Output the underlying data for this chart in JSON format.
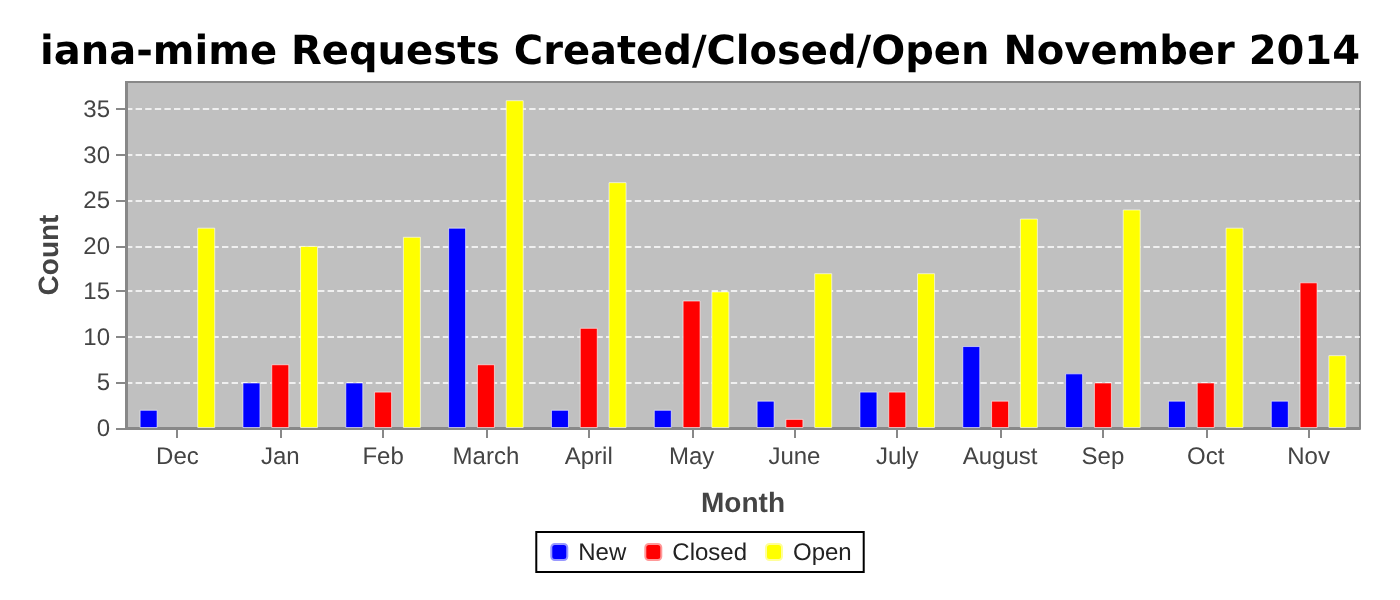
{
  "chart_data": {
    "type": "bar",
    "title": "iana-mime Requests Created/Closed/Open November 2014",
    "xlabel": "Month",
    "ylabel": "Count",
    "categories": [
      "Dec",
      "Jan",
      "Feb",
      "March",
      "April",
      "May",
      "June",
      "July",
      "August",
      "Sep",
      "Oct",
      "Nov"
    ],
    "series": [
      {
        "name": "New",
        "color": "#0000ff",
        "values": [
          2,
          5,
          5,
          22,
          2,
          2,
          3,
          4,
          9,
          6,
          3,
          3
        ]
      },
      {
        "name": "Closed",
        "color": "#ff0000",
        "values": [
          null,
          7,
          4,
          7,
          11,
          14,
          1,
          4,
          3,
          5,
          5,
          16
        ]
      },
      {
        "name": "Open",
        "color": "#ffff00",
        "values": [
          22,
          20,
          21,
          36,
          27,
          15,
          17,
          17,
          23,
          24,
          22,
          8
        ]
      }
    ],
    "ylim": [
      0,
      38
    ],
    "yticks": [
      0,
      5,
      10,
      15,
      20,
      25,
      30,
      35
    ],
    "grid": "y",
    "legend": "bottom"
  }
}
